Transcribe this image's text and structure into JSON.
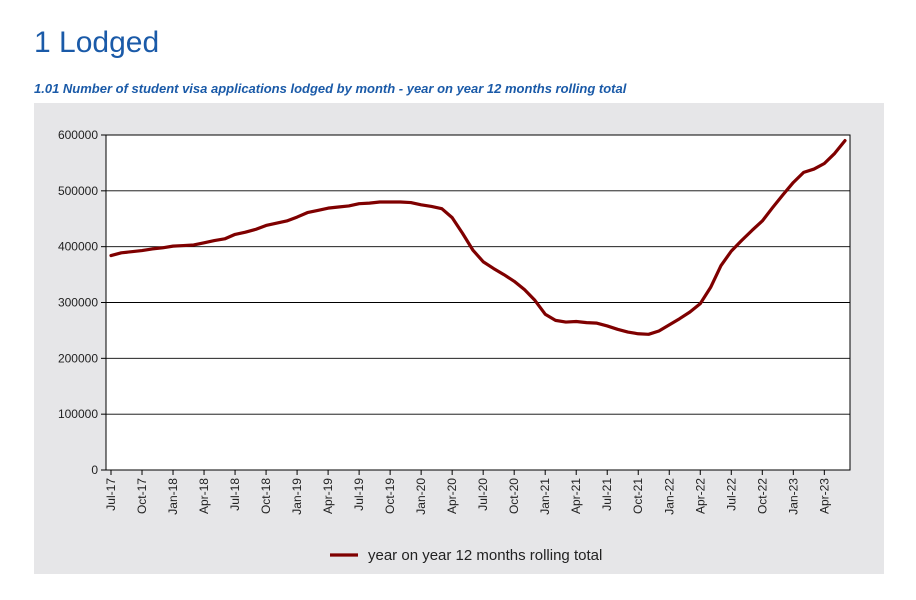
{
  "page": {
    "heading": "1 Lodged"
  },
  "colors": {
    "heading": "#1a5aa8",
    "panel_background": "#e6e6e8",
    "plot_background": "#ffffff",
    "series_line": "#7f0000",
    "gridline": "#000000"
  },
  "chart_data": {
    "type": "line",
    "title": "1.01 Number of student visa applications lodged by month - year on year 12 months rolling total",
    "xlabel": "",
    "ylabel": "",
    "ylim": [
      0,
      600000
    ],
    "yticks": [
      0,
      100000,
      200000,
      300000,
      400000,
      500000,
      600000
    ],
    "ytick_labels": [
      "0",
      "100000",
      "200000",
      "300000",
      "400000",
      "500000",
      "600000"
    ],
    "grid": "horizontal",
    "legend_position": "bottom-center",
    "x_categories": [
      "Jul-17",
      "Aug-17",
      "Sep-17",
      "Oct-17",
      "Nov-17",
      "Dec-17",
      "Jan-18",
      "Feb-18",
      "Mar-18",
      "Apr-18",
      "May-18",
      "Jun-18",
      "Jul-18",
      "Aug-18",
      "Sep-18",
      "Oct-18",
      "Nov-18",
      "Dec-18",
      "Jan-19",
      "Feb-19",
      "Mar-19",
      "Apr-19",
      "May-19",
      "Jun-19",
      "Jul-19",
      "Aug-19",
      "Sep-19",
      "Oct-19",
      "Nov-19",
      "Dec-19",
      "Jan-20",
      "Feb-20",
      "Mar-20",
      "Apr-20",
      "May-20",
      "Jun-20",
      "Jul-20",
      "Aug-20",
      "Sep-20",
      "Oct-20",
      "Nov-20",
      "Dec-20",
      "Jan-21",
      "Feb-21",
      "Mar-21",
      "Apr-21",
      "May-21",
      "Jun-21",
      "Jul-21",
      "Aug-21",
      "Sep-21",
      "Oct-21",
      "Nov-21",
      "Dec-21",
      "Jan-22",
      "Feb-22",
      "Mar-22",
      "Apr-22",
      "May-22",
      "Jun-22",
      "Jul-22",
      "Aug-22",
      "Sep-22",
      "Oct-22",
      "Nov-22",
      "Dec-22",
      "Jan-23",
      "Feb-23",
      "Mar-23",
      "Apr-23",
      "May-23",
      "Jun-23"
    ],
    "x_tick_labels": [
      "Jul-17",
      "Oct-17",
      "Jan-18",
      "Apr-18",
      "Jul-18",
      "Oct-18",
      "Jan-19",
      "Apr-19",
      "Jul-19",
      "Oct-19",
      "Jan-20",
      "Apr-20",
      "Jul-20",
      "Oct-20",
      "Jan-21",
      "Apr-21",
      "Jul-21",
      "Oct-21",
      "Jan-22",
      "Apr-22",
      "Jul-22",
      "Oct-22",
      "Jan-23",
      "Apr-23"
    ],
    "series": [
      {
        "name": "year on year 12 months rolling total",
        "values": [
          384000,
          389000,
          391000,
          393000,
          396000,
          398000,
          401000,
          402000,
          403000,
          407000,
          411000,
          414000,
          422000,
          426000,
          431000,
          438000,
          442000,
          446000,
          453000,
          461000,
          465000,
          469000,
          471000,
          473000,
          477000,
          478000,
          480000,
          480000,
          480000,
          479000,
          475000,
          472000,
          468000,
          452000,
          424000,
          394000,
          373000,
          361000,
          350000,
          338000,
          323000,
          304000,
          279000,
          268000,
          265000,
          266000,
          264000,
          263000,
          258000,
          252000,
          247000,
          244000,
          243000,
          249000,
          260000,
          271000,
          283000,
          298000,
          327000,
          366000,
          392000,
          411000,
          429000,
          446000,
          470000,
          493000,
          515000,
          533000,
          539000,
          549000,
          567000,
          590000
        ]
      }
    ]
  }
}
